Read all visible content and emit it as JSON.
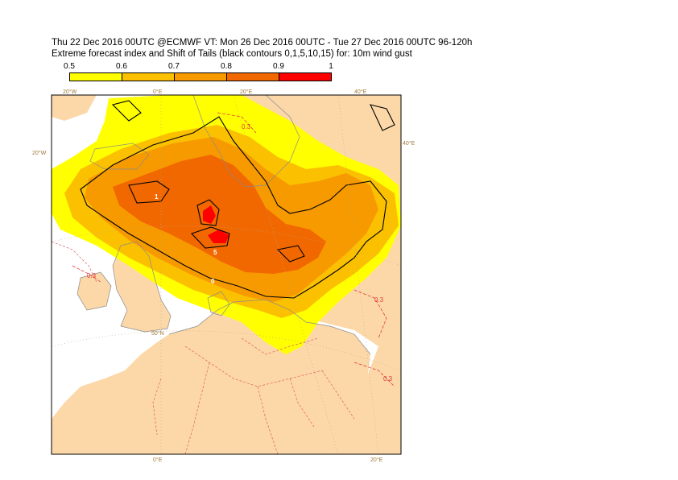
{
  "title_line1": "Thu 22 Dec 2016 00UTC @ECMWF VT: Mon 26 Dec 2016 00UTC - Tue 27 Dec 2016 00UTC  96-120h",
  "title_line2": "Extreme forecast index and Shift of Tails (black contours 0,1,5,10,15) for: 10m wind gust",
  "colorbar": {
    "ticks": [
      "0.5",
      "0.6",
      "0.7",
      "0.8",
      "0.9",
      "1"
    ],
    "colors": [
      "#ffff00",
      "#fbc100",
      "#f79a00",
      "#f26800",
      "#ff0000"
    ]
  },
  "map": {
    "land_color": "#fcd8a8",
    "sea_color": "#ffffff",
    "grid_labels": {
      "top_20w": "20°W",
      "top_0e": "0°E",
      "top_20e": "20°E",
      "top_40e": "40°E",
      "left_20w": "20°W",
      "right_40e": "40°E",
      "mid_50n": "50°N",
      "bottom_0e": "0°E",
      "bottom_20e": "20°E"
    },
    "contour_labels": {
      "efi_03_a": "0.3",
      "efi_03_b": "0.3",
      "efi_03_c": "0.3",
      "efi_03_d": "0.3",
      "sot_1": "1",
      "sot_5": "5",
      "sot_0": "0"
    }
  }
}
